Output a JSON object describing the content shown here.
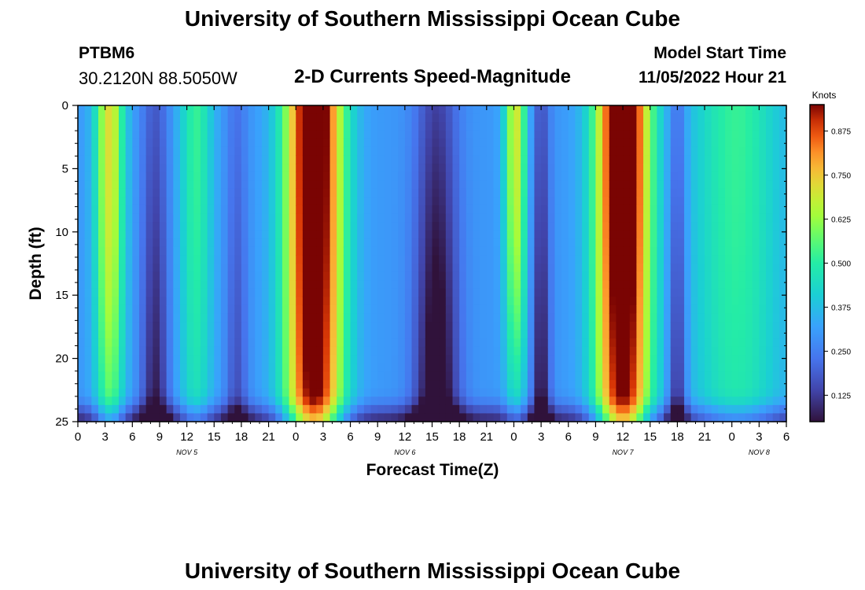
{
  "header": {
    "title": "University of Southern Mississippi Ocean Cube",
    "station": "PTBM6",
    "coords": "30.2120N  88.5050W",
    "model_start_label": "Model Start Time",
    "model_start_value": "11/05/2022 Hour 21",
    "plot_title": "2-D Currents Speed-Magnitude"
  },
  "footer": {
    "title": "University of Southern Mississippi Ocean Cube"
  },
  "chart_data": {
    "type": "heatmap",
    "title": "2-D Currents Speed-Magnitude",
    "xlabel": "Forecast Time(Z)",
    "ylabel": "Depth (ft)",
    "x_ticks": [
      "0",
      "3",
      "6",
      "9",
      "12",
      "15",
      "18",
      "21",
      "0",
      "3",
      "6",
      "9",
      "12",
      "15",
      "18",
      "21",
      "0",
      "3",
      "6",
      "9",
      "12",
      "15",
      "18",
      "21",
      "0",
      "3",
      "6"
    ],
    "x_range_hours": [
      0,
      78
    ],
    "date_labels": [
      {
        "hour": 12,
        "label": "NOV 5"
      },
      {
        "hour": 36,
        "label": "NOV 6"
      },
      {
        "hour": 60,
        "label": "NOV 7"
      },
      {
        "hour": 75,
        "label": "NOV 8"
      }
    ],
    "y_ticks": [
      0,
      5,
      10,
      15,
      20,
      25
    ],
    "y_range_ft": [
      0,
      25
    ],
    "colorbar": {
      "unit": "Knots",
      "range": [
        0.05,
        0.95
      ],
      "ticks": [
        "0.875",
        "0.750",
        "0.625",
        "0.500",
        "0.375",
        "0.250",
        "0.125"
      ],
      "tick_values": [
        0.875,
        0.75,
        0.625,
        0.5,
        0.375,
        0.25,
        0.125
      ]
    },
    "features_knots": [
      {
        "hour": 3.5,
        "surface_speed": 0.55,
        "deep_speed": 0.3,
        "note": "ebb/flood maximum"
      },
      {
        "hour": 8,
        "surface_speed": 0.15,
        "deep_speed": 0.1,
        "note": "slack"
      },
      {
        "hour": 13,
        "surface_speed": 0.45,
        "deep_speed": 0.2,
        "note": "moderate"
      },
      {
        "hour": 26,
        "surface_speed": 0.93,
        "deep_speed": 0.7,
        "note": "strong maximum"
      },
      {
        "hour": 39.5,
        "surface_speed": 0.2,
        "deep_speed": 0.05,
        "note": "slack minimum"
      },
      {
        "hour": 48,
        "surface_speed": 0.55,
        "deep_speed": 0.3,
        "note": "surface jet"
      },
      {
        "hour": 51,
        "surface_speed": 0.2,
        "deep_speed": 0.1,
        "note": "slack"
      },
      {
        "hour": 60,
        "surface_speed": 0.93,
        "deep_speed": 0.7,
        "note": "strong maximum"
      },
      {
        "hour": 66,
        "surface_speed": 0.2,
        "deep_speed": 0.1,
        "note": "slack"
      },
      {
        "hour": 72,
        "surface_speed": 0.42,
        "deep_speed": 0.35,
        "note": "broad moderate"
      }
    ]
  }
}
